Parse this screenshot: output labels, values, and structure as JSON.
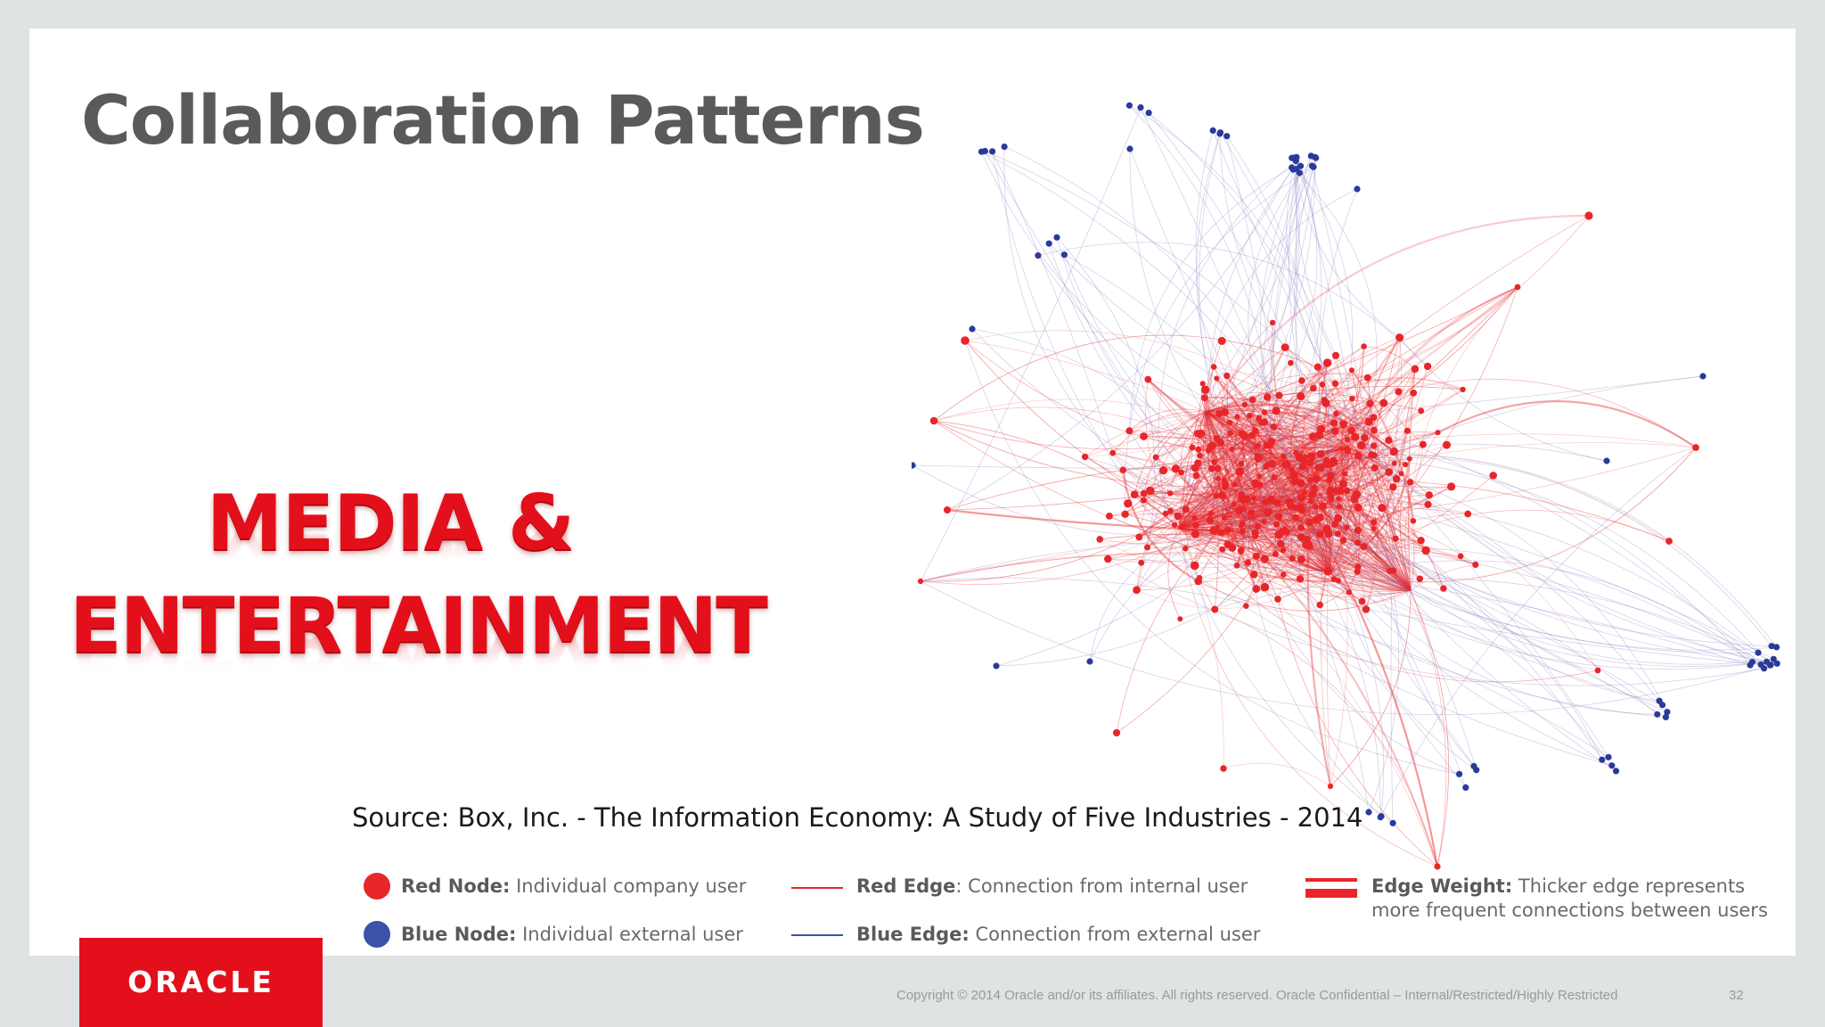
{
  "slide": {
    "title": "Collaboration Patterns",
    "headline_line1": "MEDIA &",
    "headline_line2": "ENTERTAINMENT",
    "source": "Source: Box, Inc. - The Information Economy: A Study of Five Industries - 2014"
  },
  "network": {
    "description_colors": {
      "internal": "#e8262a",
      "external": "#2b3a99"
    }
  },
  "legend": {
    "red_node_label": "Red Node:",
    "red_node_text": " Individual company user",
    "blue_node_label": "Blue Node:",
    "blue_node_text": " Individual external user",
    "red_edge_label": "Red Edge",
    "red_edge_text": ": Connection from internal user",
    "blue_edge_label": "Blue Edge:",
    "blue_edge_text": " Connection from external user",
    "weight_label": "Edge Weight:",
    "weight_text_line1": " Thicker edge represents",
    "weight_text_line2": "more frequent connections between users"
  },
  "footer": {
    "brand": "ORACLE",
    "copyright": "Copyright © 2014 Oracle and/or its affiliates. All rights reserved.  Oracle Confidential – Internal/Restricted/Highly Restricted",
    "page_number": "32"
  }
}
